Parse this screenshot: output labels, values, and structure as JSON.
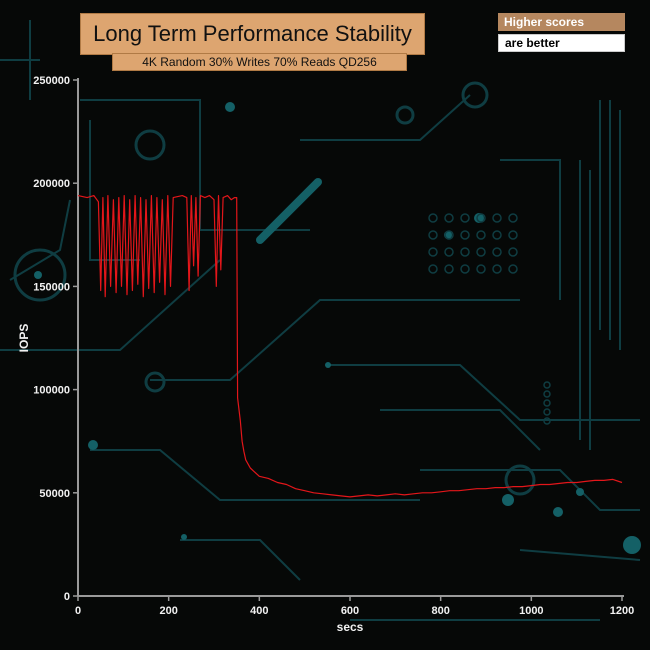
{
  "notes": {
    "line1": "Higher scores",
    "line2": "are better"
  },
  "colors": {
    "series": "#e3161a",
    "background": "#060807",
    "circuit": "#0f3d42",
    "axis": "#9a9a9a",
    "title_box": "#dda570"
  },
  "chart_data": {
    "type": "line",
    "title": "Long Term Performance Stability",
    "subtitle": "4K Random 30% Writes 70% Reads QD256",
    "xlabel": "secs",
    "ylabel": "IOPS",
    "xlim": [
      0,
      1200
    ],
    "ylim": [
      0,
      250000
    ],
    "x_ticks": [
      0,
      200,
      400,
      600,
      800,
      1000,
      1200
    ],
    "y_ticks": [
      0,
      50000,
      100000,
      150000,
      200000,
      250000
    ],
    "grid": false,
    "legend": "none",
    "series": [
      {
        "description": "single IOPS trace",
        "points": [
          [
            0,
            194000
          ],
          [
            20,
            193000
          ],
          [
            35,
            194000
          ],
          [
            45,
            191000
          ],
          [
            50,
            148000
          ],
          [
            55,
            193000
          ],
          [
            60,
            145000
          ],
          [
            66,
            194000
          ],
          [
            72,
            150000
          ],
          [
            78,
            192000
          ],
          [
            84,
            147000
          ],
          [
            90,
            193000
          ],
          [
            96,
            150000
          ],
          [
            102,
            194000
          ],
          [
            108,
            146000
          ],
          [
            114,
            192000
          ],
          [
            120,
            148000
          ],
          [
            126,
            194000
          ],
          [
            132,
            151000
          ],
          [
            138,
            193000
          ],
          [
            144,
            145000
          ],
          [
            150,
            192000
          ],
          [
            156,
            149000
          ],
          [
            162,
            194000
          ],
          [
            168,
            147000
          ],
          [
            174,
            193000
          ],
          [
            180,
            152000
          ],
          [
            186,
            192000
          ],
          [
            192,
            146000
          ],
          [
            198,
            194000
          ],
          [
            204,
            150000
          ],
          [
            210,
            193000
          ],
          [
            230,
            194000
          ],
          [
            240,
            193000
          ],
          [
            245,
            148000
          ],
          [
            250,
            194000
          ],
          [
            255,
            160000
          ],
          [
            260,
            193000
          ],
          [
            265,
            155000
          ],
          [
            270,
            194000
          ],
          [
            280,
            193000
          ],
          [
            290,
            194000
          ],
          [
            300,
            192000
          ],
          [
            305,
            150000
          ],
          [
            310,
            194000
          ],
          [
            315,
            158000
          ],
          [
            320,
            193000
          ],
          [
            330,
            194000
          ],
          [
            338,
            192000
          ],
          [
            345,
            193000
          ],
          [
            350,
            193000
          ],
          [
            352,
            96000
          ],
          [
            358,
            85000
          ],
          [
            362,
            75000
          ],
          [
            366,
            70000
          ],
          [
            370,
            66000
          ],
          [
            380,
            62000
          ],
          [
            390,
            60000
          ],
          [
            400,
            58000
          ],
          [
            420,
            57000
          ],
          [
            440,
            55000
          ],
          [
            460,
            54000
          ],
          [
            480,
            52000
          ],
          [
            500,
            51000
          ],
          [
            520,
            50000
          ],
          [
            540,
            49500
          ],
          [
            560,
            49000
          ],
          [
            580,
            48500
          ],
          [
            600,
            48000
          ],
          [
            620,
            48500
          ],
          [
            640,
            49000
          ],
          [
            660,
            48500
          ],
          [
            680,
            49000
          ],
          [
            700,
            49500
          ],
          [
            720,
            49000
          ],
          [
            740,
            49500
          ],
          [
            760,
            50000
          ],
          [
            780,
            50000
          ],
          [
            800,
            50500
          ],
          [
            820,
            51000
          ],
          [
            840,
            51000
          ],
          [
            860,
            51500
          ],
          [
            880,
            52000
          ],
          [
            900,
            52000
          ],
          [
            920,
            52500
          ],
          [
            940,
            52500
          ],
          [
            960,
            53000
          ],
          [
            980,
            53000
          ],
          [
            1000,
            53500
          ],
          [
            1020,
            54000
          ],
          [
            1040,
            54000
          ],
          [
            1060,
            54500
          ],
          [
            1080,
            55000
          ],
          [
            1100,
            55000
          ],
          [
            1120,
            55500
          ],
          [
            1140,
            56000
          ],
          [
            1160,
            56000
          ],
          [
            1180,
            56500
          ],
          [
            1200,
            55000
          ]
        ]
      }
    ]
  }
}
